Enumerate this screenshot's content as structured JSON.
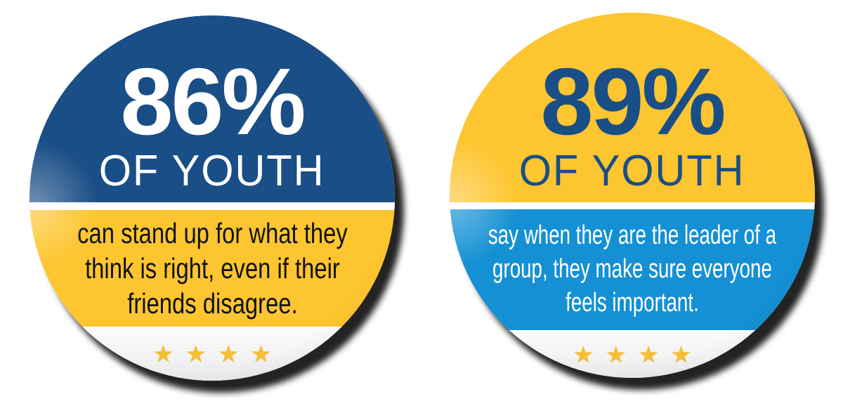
{
  "page": {
    "background": "#ffffff",
    "description_colors": {
      "navy": "#1A4E86",
      "yellow": "#FDC52F",
      "sky_blue": "#1590D4",
      "white": "#FFFFFF",
      "star_gold": "#F6BE35",
      "statement_dark_text": "#111111",
      "shadow": "#040404"
    }
  },
  "icons": {
    "star": "★"
  },
  "badges": [
    {
      "percent": "86%",
      "subtitle": "OF YOUTH",
      "statement_lines": {
        "0": "can stand up for what they",
        "1": "think is right, even if their",
        "2": "friends disagree."
      },
      "star_count": 4,
      "top_color": "#1A4E86",
      "band_color": "#FDC52F",
      "percent_color": "#FFFFFF",
      "statement_color": "#111111"
    },
    {
      "percent": "89%",
      "subtitle": "OF YOUTH",
      "statement_lines": {
        "0": "say when they are the leader of a",
        "1": "group, they make sure everyone",
        "2": "feels important."
      },
      "star_count": 4,
      "top_color": "#FDC52F",
      "band_color": "#1590D4",
      "percent_color": "#1A4E86",
      "statement_color": "#FFFFFF"
    }
  ]
}
